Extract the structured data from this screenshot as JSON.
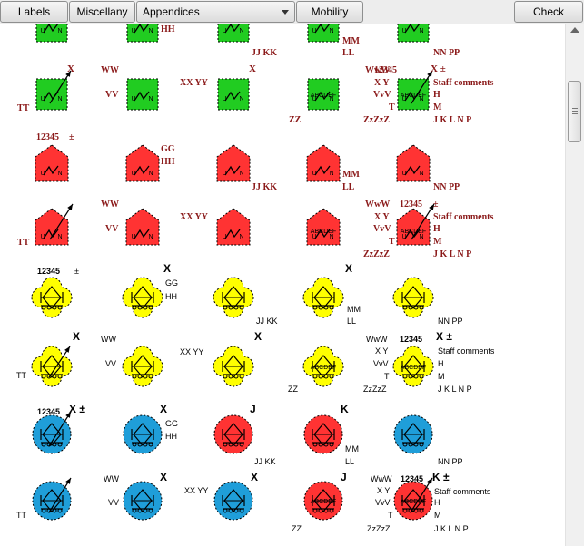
{
  "toolbar": {
    "labels_button": "Labels",
    "miscellany_button": "Miscellany",
    "appendices_select": "Appendices",
    "mobility_button": "Mobility",
    "check_button": "Check"
  },
  "colors": {
    "green": "#21cc21",
    "red": "#ff3333",
    "yellow": "#ffff00",
    "cyan": "#1f9ed9",
    "label_red": "#8b1a1a",
    "black": "#000000"
  },
  "symbol_parts": {
    "unit_left": "U",
    "unit_right": "N",
    "overlay_text": "ABCDEF"
  },
  "label_text": {
    "hh": "HH",
    "jj_kk": "JJ KK",
    "mm": "MM",
    "ll": "LL",
    "nn_pp": "NN PP",
    "x": "X",
    "x_pm": "X ±",
    "ww": "WW",
    "www": "WwW",
    "num": "12345",
    "pm": "±",
    "vv": "VV",
    "vvv": "VvV",
    "xx_yy": "XX YY",
    "x_y": "X Y",
    "tt": "TT",
    "t": "T",
    "zz": "ZZ",
    "zzz": "ZzZzZ",
    "staff": "Staff comments",
    "h": "H",
    "m": "M",
    "jklnp": "J K L N P",
    "gg": "GG",
    "j": "J",
    "k": "K",
    "k_pm": "K ±"
  }
}
